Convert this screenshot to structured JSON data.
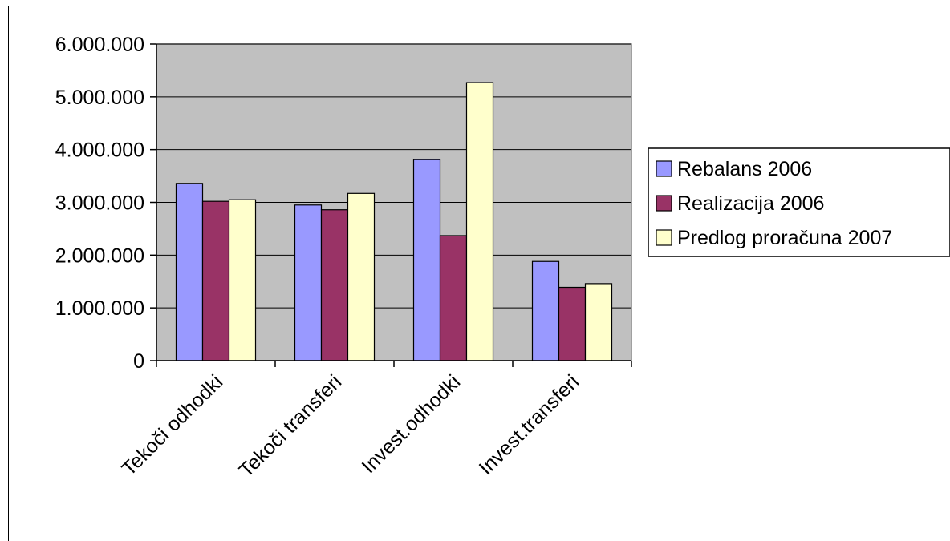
{
  "chart_data": {
    "type": "bar",
    "categories": [
      "Tekoči odhodki",
      "Tekoči transferi",
      "Invest.odhodki",
      "Invest.transferi"
    ],
    "series": [
      {
        "name": "Rebalans 2006",
        "color": "#9999ff",
        "values": [
          3360000,
          2950000,
          3810000,
          1880000
        ]
      },
      {
        "name": "Realizacija 2006",
        "color": "#993366",
        "values": [
          3020000,
          2860000,
          2370000,
          1390000
        ]
      },
      {
        "name": "Predlog proračuna 2007",
        "color": "#ffffcc",
        "values": [
          3050000,
          3170000,
          5270000,
          1460000
        ]
      }
    ],
    "ylim": [
      0,
      6000000
    ],
    "yticks": [
      "0",
      "1.000.000",
      "2.000.000",
      "3.000.000",
      "4.000.000",
      "5.000.000",
      "6.000.000"
    ],
    "grid": true,
    "legend_position": "right",
    "plot_background": "#c0c0c0"
  }
}
